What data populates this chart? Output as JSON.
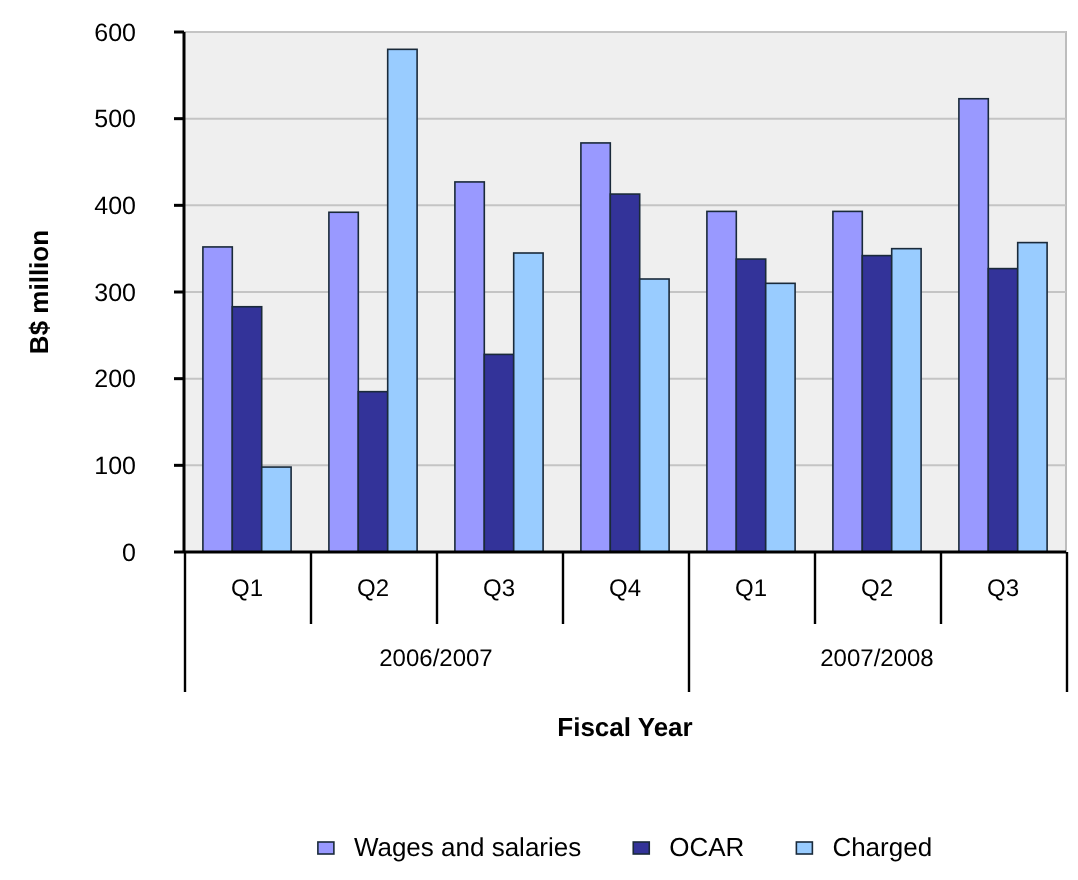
{
  "chart_data": {
    "type": "bar",
    "categories": [
      "Q1",
      "Q2",
      "Q3",
      "Q4",
      "Q1",
      "Q2",
      "Q3"
    ],
    "series": [
      {
        "name": "Wages and salaries",
        "color": "#9999ff",
        "values": [
          352,
          392,
          427,
          472,
          393,
          393,
          523
        ]
      },
      {
        "name": "OCAR",
        "color": "#333399",
        "values": [
          283,
          185,
          228,
          413,
          338,
          342,
          327
        ]
      },
      {
        "name": "Charged",
        "color": "#99ccff",
        "values": [
          98,
          580,
          345,
          315,
          310,
          350,
          357
        ]
      }
    ],
    "ylim": [
      0,
      600
    ],
    "yticks": [
      0,
      100,
      200,
      300,
      400,
      500,
      600
    ],
    "ylabel": "B$ million",
    "xlabel": "Fiscal Year",
    "annotations": [
      "2006/2007",
      "2007/2008"
    ],
    "grid": "y",
    "legend": "bottom"
  }
}
